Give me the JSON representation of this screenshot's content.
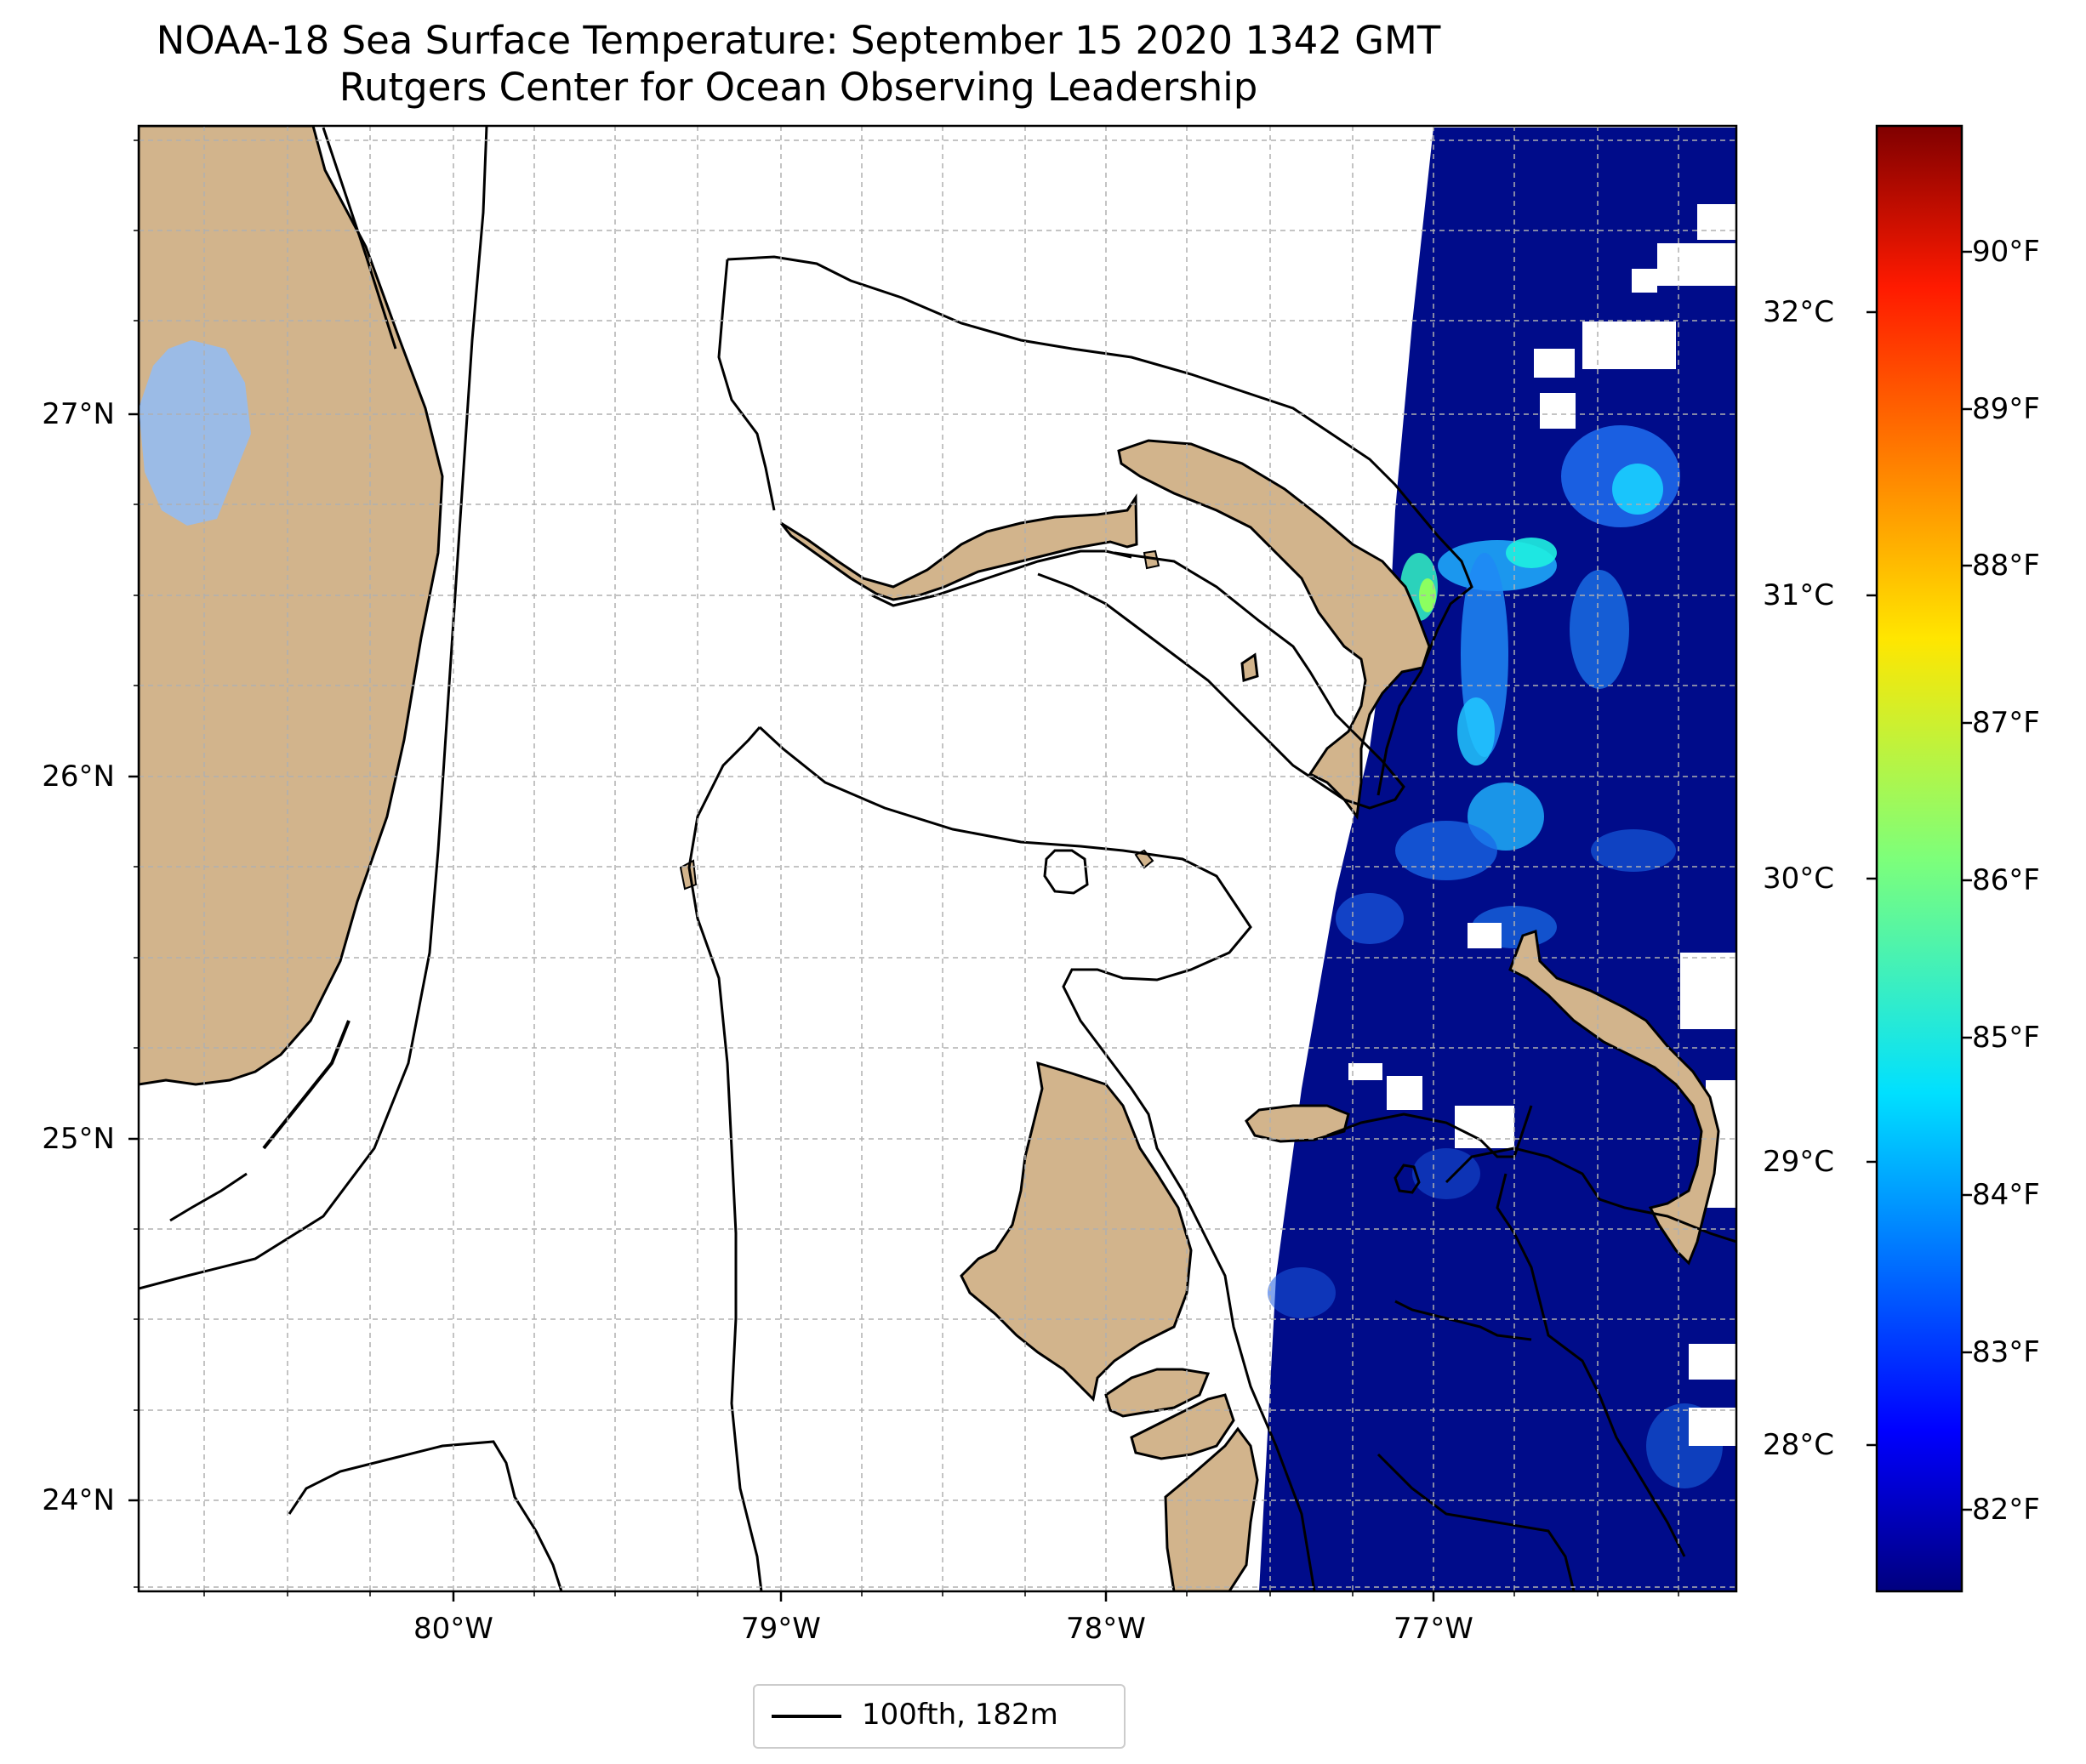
{
  "title": {
    "line1": "NOAA-18 Sea Surface Temperature: September 15 2020 1342 GMT",
    "line2": "Rutgers Center for Ocean Observing Leadership"
  },
  "map": {
    "lat_ticks": [
      {
        "value": 27,
        "label": "27°N"
      },
      {
        "value": 26,
        "label": "26°N"
      },
      {
        "value": 25,
        "label": "25°N"
      },
      {
        "value": 24,
        "label": "24°N"
      }
    ],
    "lon_ticks": [
      {
        "value": -80,
        "label": "80°W"
      },
      {
        "value": -79,
        "label": "79°W"
      },
      {
        "value": -78,
        "label": "78°W"
      },
      {
        "value": -77,
        "label": "77°W"
      }
    ],
    "extent": {
      "lon_min": -80.96,
      "lon_max": -76.1,
      "lat_min": 23.76,
      "lat_max": 27.8
    },
    "land_color": "#d2b48c",
    "lake_color": "#9bbbe6",
    "sst_base_color": "#000c8a",
    "gridlines": true
  },
  "colorbar": {
    "fahrenheit_labels": [
      "90°F",
      "89°F",
      "88°F",
      "87°F",
      "86°F",
      "85°F",
      "84°F",
      "83°F",
      "82°F"
    ],
    "celsius_labels": [
      "32°C",
      "31°C",
      "30°C",
      "29°C",
      "28°C"
    ],
    "range_f": [
      81.5,
      90.8
    ],
    "colormap": "jet"
  },
  "legend": {
    "label": "100fth, 182m",
    "placement": "bottom-center"
  }
}
